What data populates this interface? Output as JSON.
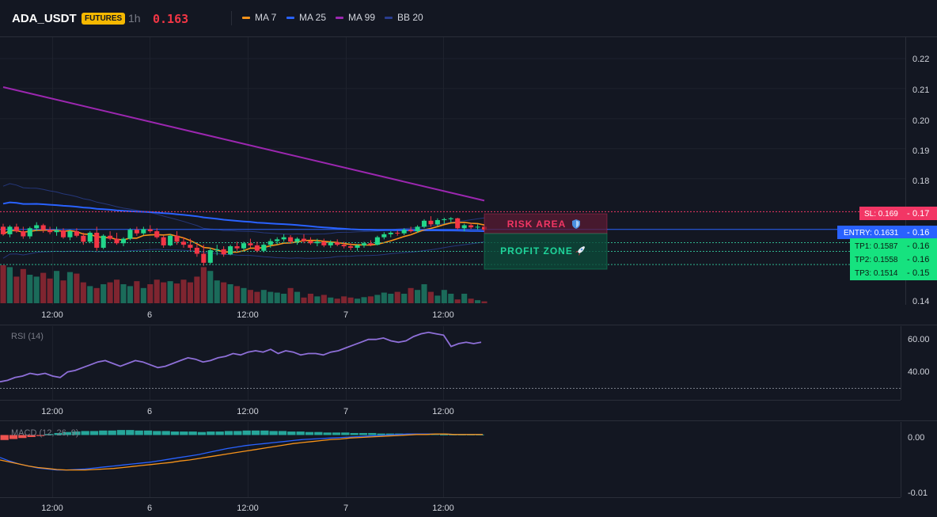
{
  "header": {
    "symbol": "ADA_USDT",
    "badge": "FUTURES",
    "timeframe": "1h",
    "price": "0.163",
    "legend": [
      {
        "label": "MA 7",
        "color": "#f7931a"
      },
      {
        "label": "MA 25",
        "color": "#2962ff"
      },
      {
        "label": "MA 99",
        "color": "#9c27b0"
      },
      {
        "label": "BB 20",
        "color": "#2a3d8f"
      }
    ]
  },
  "colors": {
    "up": "#22d68a",
    "down": "#f23645",
    "up_vol": "#1b6b5a",
    "down_vol": "#7f2530",
    "ma7": "#f7931a",
    "ma25": "#2962ff",
    "ma99": "#9c27b0",
    "bb": "#25377a",
    "rsi": "#8e6fd8",
    "macd": "#2962ff",
    "signal": "#f7931a"
  },
  "time_labels": [
    "12:00",
    "6",
    "12:00",
    "7",
    "12:00"
  ],
  "price_ticks": [
    "0.22",
    "0.21",
    "0.20",
    "0.19",
    "0.18",
    "0.14"
  ],
  "levels": {
    "sl": {
      "value": 0.169,
      "label": "SL: 0.169",
      "axis": "0.17",
      "color": "#f23665"
    },
    "entry": {
      "value": 0.1631,
      "label": "ENTRY: 0.1631",
      "axis": "0.16",
      "color": "#2962ff"
    },
    "tp1": {
      "value": 0.1587,
      "label": "TP1: 0.1587",
      "axis": "0.16",
      "color": "#16c77a"
    },
    "tp2": {
      "value": 0.1558,
      "label": "TP2: 0.1558",
      "axis": "0.16",
      "color": "#16c77a"
    },
    "tp3": {
      "value": 0.1514,
      "label": "TP3: 0.1514",
      "axis": "0.15",
      "color": "#16c77a"
    }
  },
  "zones": {
    "risk_label": "RISK AREA",
    "profit_label": "PROFIT ZONE"
  },
  "rsi": {
    "label": "RSI (14)",
    "ticks": [
      "60.00",
      "40.00"
    ],
    "level": 30
  },
  "macd": {
    "label": "MACD (12, 26, 9)",
    "ticks": [
      "0.00",
      "-0.01"
    ]
  },
  "chart_data": [
    {
      "type": "candlestick",
      "title": "ADA_USDT 1h",
      "ylim": [
        0.138,
        0.225
      ],
      "overlays": [
        "MA 7",
        "MA 25",
        "MA 99",
        "BB 20"
      ],
      "ma99_approx": {
        "start": 0.2105,
        "end": 0.1727
      },
      "candles": [
        [
          0.164,
          0.165,
          0.161,
          0.1615
        ],
        [
          0.1615,
          0.1645,
          0.1605,
          0.164
        ],
        [
          0.164,
          0.165,
          0.162,
          0.1625
        ],
        [
          0.1625,
          0.164,
          0.16,
          0.1608
        ],
        [
          0.1608,
          0.164,
          0.16,
          0.1635
        ],
        [
          0.1635,
          0.1655,
          0.1625,
          0.1645
        ],
        [
          0.1645,
          0.165,
          0.162,
          0.163
        ],
        [
          0.163,
          0.164,
          0.1615,
          0.1622
        ],
        [
          0.1622,
          0.164,
          0.161,
          0.1628
        ],
        [
          0.1628,
          0.1635,
          0.16,
          0.1605
        ],
        [
          0.1605,
          0.163,
          0.1595,
          0.1625
        ],
        [
          0.1625,
          0.1635,
          0.1605,
          0.161
        ],
        [
          0.161,
          0.162,
          0.158,
          0.159
        ],
        [
          0.159,
          0.1625,
          0.1585,
          0.162
        ],
        [
          0.162,
          0.164,
          0.156,
          0.157
        ],
        [
          0.157,
          0.1615,
          0.1565,
          0.161
        ],
        [
          0.161,
          0.1625,
          0.1595,
          0.16
        ],
        [
          0.16,
          0.162,
          0.158,
          0.1585
        ],
        [
          0.1585,
          0.1605,
          0.1575,
          0.16
        ],
        [
          0.16,
          0.1635,
          0.1595,
          0.163
        ],
        [
          0.163,
          0.164,
          0.161,
          0.1618
        ],
        [
          0.1618,
          0.164,
          0.1612,
          0.1632
        ],
        [
          0.1632,
          0.1645,
          0.162,
          0.1625
        ],
        [
          0.1625,
          0.1635,
          0.16,
          0.1605
        ],
        [
          0.1605,
          0.161,
          0.157,
          0.1578
        ],
        [
          0.1578,
          0.1615,
          0.1575,
          0.161
        ],
        [
          0.161,
          0.1625,
          0.158,
          0.159
        ],
        [
          0.159,
          0.1605,
          0.157,
          0.158
        ],
        [
          0.158,
          0.16,
          0.156,
          0.157
        ],
        [
          0.157,
          0.1585,
          0.154,
          0.155
        ],
        [
          0.155,
          0.158,
          0.151,
          0.152
        ],
        [
          0.152,
          0.157,
          0.1515,
          0.1562
        ],
        [
          0.1562,
          0.158,
          0.1545,
          0.1565
        ],
        [
          0.1565,
          0.1575,
          0.154,
          0.1548
        ],
        [
          0.1548,
          0.158,
          0.1545,
          0.1575
        ],
        [
          0.1575,
          0.159,
          0.156,
          0.1568
        ],
        [
          0.1568,
          0.159,
          0.156,
          0.1585
        ],
        [
          0.1585,
          0.16,
          0.157,
          0.1578
        ],
        [
          0.1578,
          0.159,
          0.1555,
          0.156
        ],
        [
          0.156,
          0.1585,
          0.1555,
          0.158
        ],
        [
          0.158,
          0.16,
          0.157,
          0.1592
        ],
        [
          0.1592,
          0.1605,
          0.158,
          0.1598
        ],
        [
          0.1598,
          0.1615,
          0.159,
          0.1605
        ],
        [
          0.1605,
          0.1612,
          0.1585,
          0.159
        ],
        [
          0.159,
          0.1605,
          0.158,
          0.16
        ],
        [
          0.16,
          0.1615,
          0.1585,
          0.1592
        ],
        [
          0.1592,
          0.1605,
          0.158,
          0.1585
        ],
        [
          0.1585,
          0.16,
          0.1575,
          0.159
        ],
        [
          0.159,
          0.16,
          0.1572,
          0.1578
        ],
        [
          0.1578,
          0.1595,
          0.157,
          0.1588
        ],
        [
          0.1588,
          0.1598,
          0.1575,
          0.158
        ],
        [
          0.158,
          0.159,
          0.1568,
          0.1575
        ],
        [
          0.1575,
          0.1585,
          0.1562,
          0.157
        ],
        [
          0.157,
          0.1582,
          0.156,
          0.1578
        ],
        [
          0.1578,
          0.159,
          0.157,
          0.1585
        ],
        [
          0.1585,
          0.1595,
          0.1575,
          0.158
        ],
        [
          0.158,
          0.161,
          0.1578,
          0.1605
        ],
        [
          0.1605,
          0.1622,
          0.1598,
          0.1615
        ],
        [
          0.1615,
          0.1625,
          0.1605,
          0.162
        ],
        [
          0.162,
          0.1628,
          0.161,
          0.1618
        ],
        [
          0.1618,
          0.1635,
          0.1612,
          0.163
        ],
        [
          0.163,
          0.164,
          0.162,
          0.1625
        ],
        [
          0.1625,
          0.1645,
          0.162,
          0.164
        ],
        [
          0.164,
          0.1665,
          0.1635,
          0.166
        ],
        [
          0.166,
          0.1675,
          0.164,
          0.1648
        ],
        [
          0.1648,
          0.1668,
          0.1642,
          0.1662
        ],
        [
          0.1662,
          0.167,
          0.165,
          0.1665
        ],
        [
          0.1665,
          0.1672,
          0.1655,
          0.1668
        ],
        [
          0.1668,
          0.167,
          0.163,
          0.1635
        ],
        [
          0.1635,
          0.165,
          0.1625,
          0.1645
        ],
        [
          0.1645,
          0.1652,
          0.1632,
          0.1638
        ],
        [
          0.1638,
          0.1648,
          0.163,
          0.164
        ],
        [
          0.164,
          0.1645,
          0.1625,
          0.163
        ]
      ],
      "volumes": [
        1.0,
        0.95,
        0.7,
        0.9,
        0.75,
        0.7,
        0.8,
        0.65,
        0.85,
        0.6,
        0.82,
        0.78,
        0.55,
        0.45,
        0.4,
        0.5,
        0.55,
        0.62,
        0.5,
        0.45,
        0.58,
        0.4,
        0.5,
        0.62,
        0.55,
        0.58,
        0.52,
        0.62,
        0.55,
        0.7,
        0.95,
        0.85,
        0.6,
        0.55,
        0.5,
        0.45,
        0.4,
        0.35,
        0.3,
        0.35,
        0.3,
        0.28,
        0.25,
        0.4,
        0.3,
        0.15,
        0.25,
        0.18,
        0.22,
        0.15,
        0.12,
        0.18,
        0.15,
        0.12,
        0.16,
        0.18,
        0.22,
        0.28,
        0.25,
        0.3,
        0.25,
        0.4,
        0.35,
        0.5,
        0.3,
        0.2,
        0.35,
        0.25,
        0.1,
        0.25,
        0.12,
        0.08,
        0.05
      ]
    },
    {
      "type": "line",
      "title": "RSI (14)",
      "ylim": [
        20,
        66
      ],
      "values": [
        30,
        31,
        33,
        34,
        36,
        35,
        36,
        34,
        33,
        37,
        38,
        40,
        42,
        44,
        45,
        43,
        41,
        43,
        45,
        44,
        42,
        40,
        41,
        43,
        45,
        47,
        46,
        44,
        45,
        47,
        48,
        50,
        49,
        51,
        52,
        51,
        53,
        50,
        52,
        51,
        49,
        50,
        50,
        49,
        51,
        52,
        54,
        56,
        58,
        60,
        60,
        61,
        59,
        58,
        59,
        62,
        64,
        65,
        64,
        63,
        55,
        57,
        58,
        57,
        58
      ]
    },
    {
      "type": "macd",
      "title": "MACD (12, 26, 9)",
      "ylim": [
        -0.0115,
        0.0015
      ],
      "macd": [
        -0.0045,
        -0.0052,
        -0.0058,
        -0.0062,
        -0.0066,
        -0.0068,
        -0.007,
        -0.007,
        -0.0069,
        -0.0068,
        -0.0066,
        -0.0064,
        -0.0062,
        -0.006,
        -0.0058,
        -0.0056,
        -0.0054,
        -0.0051,
        -0.0048,
        -0.0045,
        -0.0042,
        -0.0039,
        -0.0035,
        -0.0031,
        -0.0027,
        -0.0024,
        -0.0021,
        -0.0019,
        -0.0017,
        -0.0015,
        -0.0013,
        -0.0011,
        -0.0009,
        -0.0008,
        -0.0007,
        -0.0006,
        -0.0005,
        -0.0004,
        -0.0003,
        -0.0002,
        -0.0001,
        0.0,
        0.0001,
        0.0002,
        0.0002,
        0.0002,
        0.0002,
        0.0002,
        0.0001,
        0.0001,
        0.0001,
        0.0001
      ],
      "signal": [
        -0.005,
        -0.0054,
        -0.0058,
        -0.0062,
        -0.0065,
        -0.0067,
        -0.0069,
        -0.007,
        -0.007,
        -0.007,
        -0.0069,
        -0.0068,
        -0.0067,
        -0.0065,
        -0.0063,
        -0.0061,
        -0.0059,
        -0.0057,
        -0.0055,
        -0.0052,
        -0.005,
        -0.0047,
        -0.0044,
        -0.0041,
        -0.0038,
        -0.0035,
        -0.0032,
        -0.0029,
        -0.0026,
        -0.0023,
        -0.002,
        -0.0017,
        -0.0015,
        -0.0013,
        -0.0011,
        -0.0009,
        -0.0008,
        -0.0006,
        -0.0005,
        -0.0004,
        -0.0003,
        -0.0002,
        -0.0001,
        0.0,
        0.0001,
        0.0001,
        0.0002,
        0.0002,
        0.0001,
        0.0001,
        0.0001,
        0.0001
      ],
      "histogram": [
        -0.001,
        -0.0008,
        -0.0006,
        -0.0004,
        -0.0002,
        0.0002,
        0.0004,
        0.0006,
        0.0007,
        0.0008,
        0.0008,
        0.0009,
        0.0009,
        0.001,
        0.001,
        0.0009,
        0.0009,
        0.0008,
        0.0008,
        0.0007,
        0.0007,
        0.0007,
        0.0006,
        0.0007,
        0.0007,
        0.0008,
        0.0008,
        0.0009,
        0.0009,
        0.0009,
        0.0008,
        0.0008,
        0.0007,
        0.0007,
        0.0006,
        0.0006,
        0.0005,
        0.0005,
        0.0005,
        0.0004,
        0.0004,
        0.0004,
        0.0003,
        0.0003,
        0.0003,
        0.0002,
        0.0002,
        0.0002,
        0.0002,
        0.0001,
        0.0001,
        0.0001,
        0.0001,
        0.0001
      ]
    }
  ]
}
